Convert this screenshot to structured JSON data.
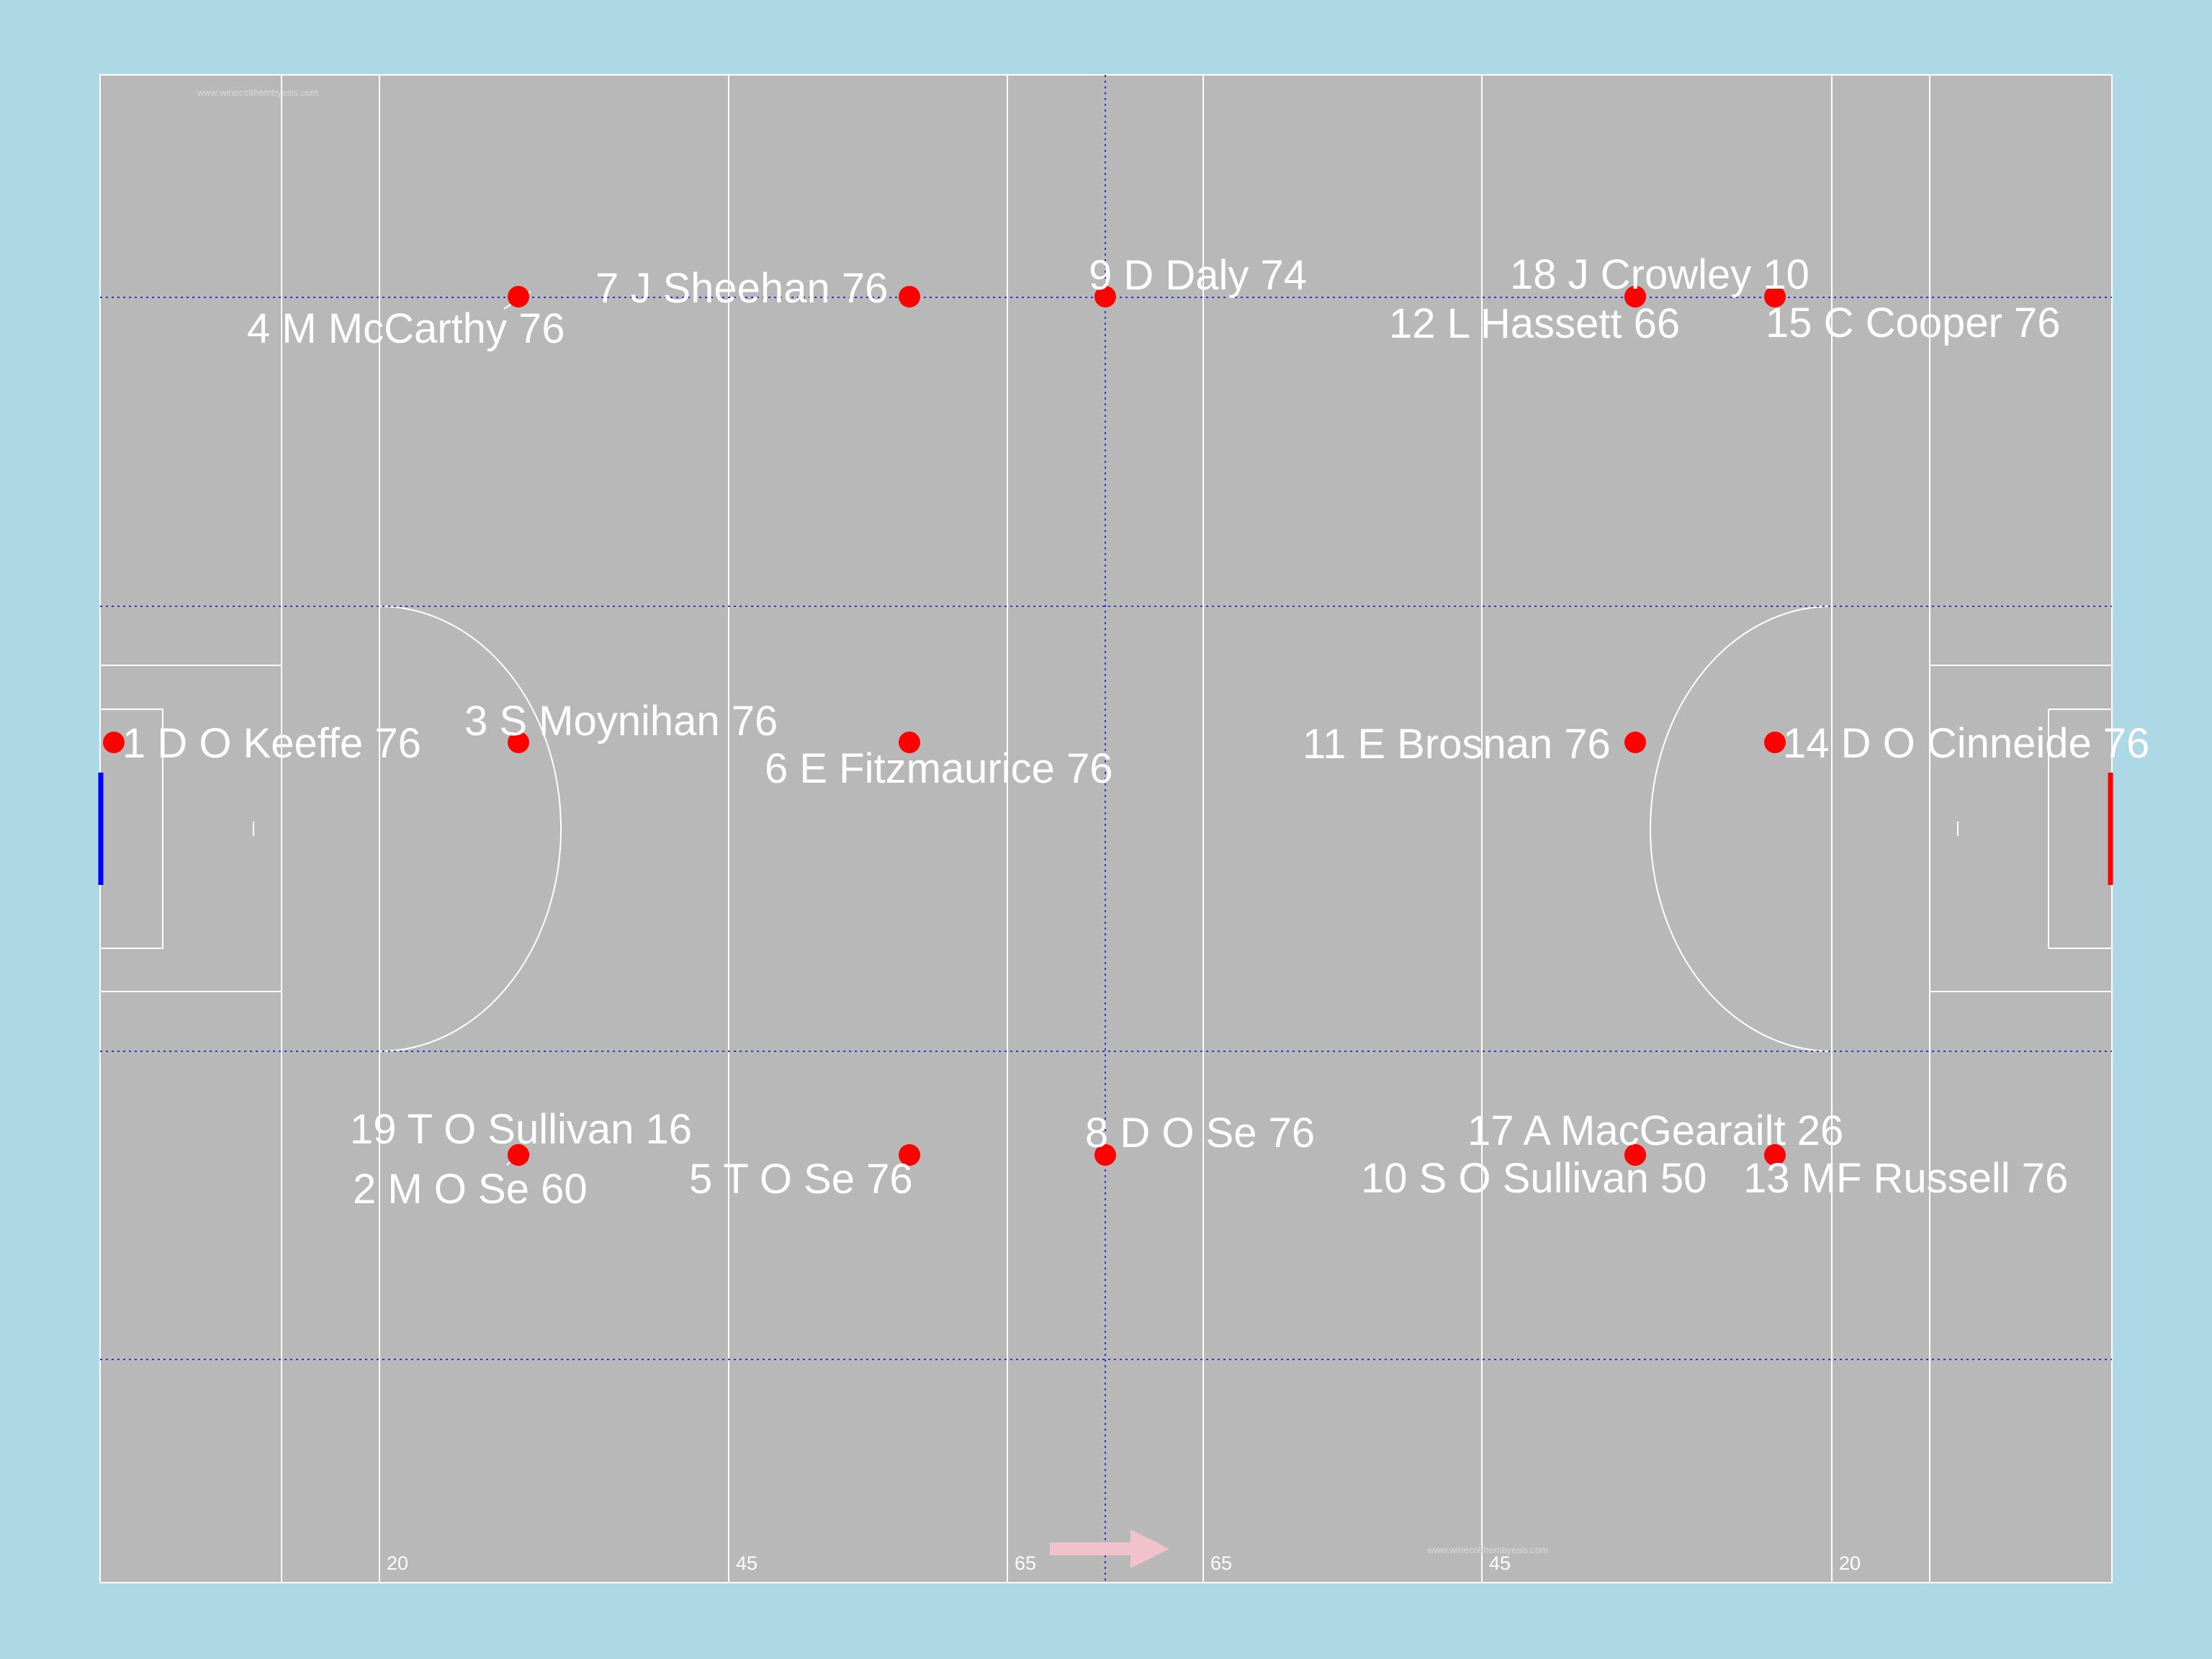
{
  "pitch": {
    "colors": {
      "background": "#add8e6",
      "grass": "#b8b8b8",
      "lines": "#ffffff",
      "zone_lines": "#3333cc",
      "player_dot": "#ff0000",
      "direction_arrow": "#f2c2cc",
      "left_goal": "#0000ff",
      "right_goal": "#ff0000"
    },
    "distance_labels": [
      "20",
      "45",
      "65",
      "65",
      "45",
      "20"
    ],
    "watermark_text": "www.winecolthembyesis.com"
  },
  "players": [
    {
      "label": "1 D O Keeffe 76",
      "color": "#ff0000"
    },
    {
      "label": "2 M O Se 60",
      "color": "#ff0000"
    },
    {
      "label": "3 S Moynihan 76",
      "color": "#ff0000"
    },
    {
      "label": "4 M McCarthy 76",
      "color": "#ff0000"
    },
    {
      "label": "5 T O Se 76",
      "color": "#ff0000"
    },
    {
      "label": "6 E Fitzmaurice 76",
      "color": "#ff0000"
    },
    {
      "label": "7 J Sheehan 76",
      "color": "#ff0000"
    },
    {
      "label": "8 D O Se 76",
      "color": "#ff0000"
    },
    {
      "label": "9 D Daly 74",
      "color": "#ff0000"
    },
    {
      "label": "10 S O Sullivan 50",
      "color": "#ff0000"
    },
    {
      "label": "11 E Brosnan 76",
      "color": "#ff0000"
    },
    {
      "label": "12 L Hassett 66",
      "color": "#ff0000"
    },
    {
      "label": "13 MF Russell 76",
      "color": "#ff0000"
    },
    {
      "label": "14 D O Cinneide 76",
      "color": "#ff0000"
    },
    {
      "label": "15 C Cooper 76",
      "color": "#ff0000"
    },
    {
      "label": "17 A MacGearailt 26",
      "color": "#ff0000"
    },
    {
      "label": "18 J Crowley 10",
      "color": "#ff0000"
    },
    {
      "label": "19 T O Sullivan 16",
      "color": "#ff0000"
    }
  ]
}
